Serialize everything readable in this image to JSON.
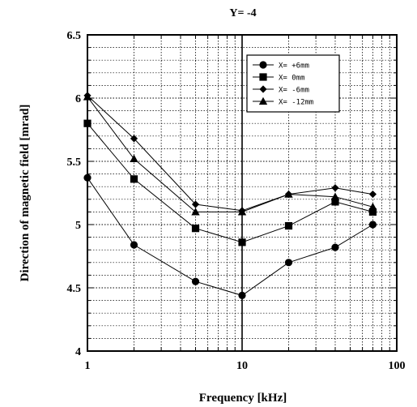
{
  "chart_data": {
    "type": "line",
    "title": "Y= -4",
    "xlabel": "Frequency [kHz]",
    "ylabel": "Direction of magnetic field [mrad]",
    "xscale": "log",
    "xlim": [
      1,
      100
    ],
    "ylim": [
      4,
      6.5
    ],
    "x_ticks": [
      "1",
      "10",
      "100"
    ],
    "y_ticks": [
      "4",
      "4.5",
      "5",
      "5.5",
      "6",
      "6.5"
    ],
    "grid": "dotted",
    "legend_position": "top-right",
    "x": [
      1,
      2,
      5,
      10,
      20,
      40,
      70
    ],
    "series": [
      {
        "name": "X=  +6mm",
        "marker": "circle",
        "values": [
          5.37,
          4.84,
          4.55,
          4.44,
          4.7,
          4.82,
          5.0
        ]
      },
      {
        "name": "X=  0mm",
        "marker": "square",
        "values": [
          5.8,
          5.36,
          4.97,
          4.86,
          4.99,
          5.18,
          5.1
        ]
      },
      {
        "name": "X=  -6mm",
        "marker": "diamond",
        "values": [
          6.02,
          5.68,
          5.16,
          5.11,
          5.24,
          5.29,
          5.24
        ]
      },
      {
        "name": "X=  -12mm",
        "marker": "triangle",
        "values": [
          6.01,
          5.52,
          5.1,
          5.1,
          5.24,
          5.22,
          5.14
        ]
      }
    ]
  }
}
